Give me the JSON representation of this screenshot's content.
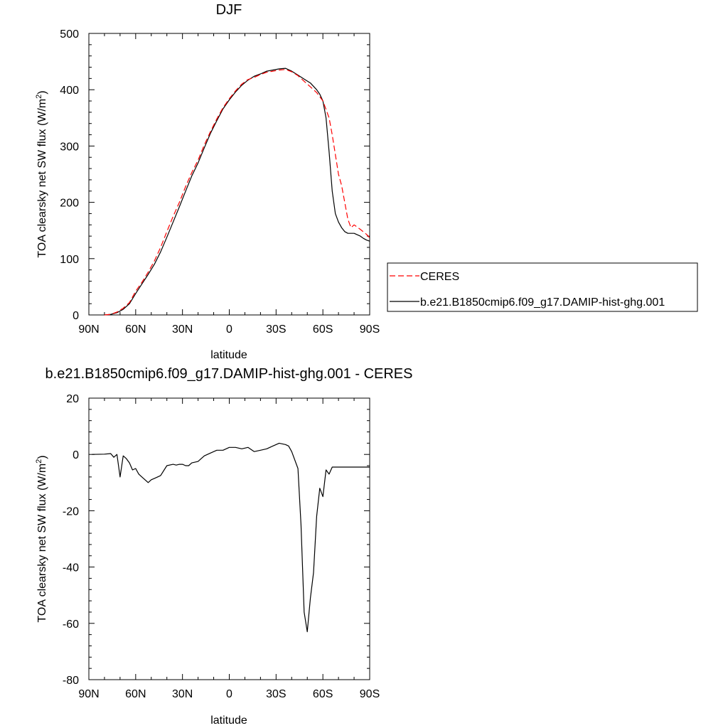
{
  "chart_data": [
    {
      "type": "line",
      "title": "DJF",
      "xlabel": "latitude",
      "ylabel": "TOA clearsky net SW flux (W/m",
      "ylabel_sup": "2",
      "ylabel_end": ")",
      "xlim": [
        90,
        -90
      ],
      "ylim": [
        0,
        500
      ],
      "x_tick_values": [
        90,
        60,
        30,
        0,
        -30,
        -60,
        -90
      ],
      "x_tick_labels": [
        "90N",
        "60N",
        "30N",
        "0",
        "30S",
        "60S",
        "90S"
      ],
      "y_tick_values": [
        0,
        100,
        200,
        300,
        400,
        500
      ],
      "y_tick_labels": [
        "0",
        "100",
        "200",
        "300",
        "400",
        "500"
      ],
      "grid": false,
      "legend_position": "right",
      "series": [
        {
          "name": "CERES",
          "color": "#ff0000",
          "dash": true,
          "x": [
            80,
            76,
            72,
            68,
            64,
            60,
            56,
            52,
            48,
            44,
            40,
            36,
            32,
            28,
            24,
            20,
            16,
            12,
            8,
            4,
            0,
            -4,
            -8,
            -12,
            -16,
            -20,
            -24,
            -28,
            -32,
            -36,
            -40,
            -44,
            -48,
            -52,
            -56,
            -60,
            -64,
            -66,
            -68,
            -70,
            -72,
            -74,
            -76,
            -78,
            -80,
            -84,
            -88,
            -90
          ],
          "y": [
            0,
            1,
            5,
            12,
            22,
            42,
            58,
            76,
            96,
            120,
            148,
            175,
            200,
            228,
            253,
            275,
            302,
            326,
            348,
            368,
            384,
            398,
            410,
            418,
            422,
            427,
            431,
            433,
            435,
            436,
            432,
            425,
            415,
            405,
            395,
            380,
            350,
            320,
            285,
            250,
            230,
            200,
            170,
            155,
            160,
            152,
            143,
            137
          ]
        },
        {
          "name": "b.e21.B1850cmip6.f09_g17.DAMIP-hist-ghg.001",
          "color": "#000000",
          "dash": false,
          "x": [
            80,
            76,
            72,
            68,
            64,
            60,
            56,
            52,
            48,
            44,
            40,
            36,
            32,
            28,
            24,
            20,
            16,
            12,
            8,
            4,
            0,
            -4,
            -8,
            -12,
            -16,
            -20,
            -24,
            -28,
            -32,
            -36,
            -40,
            -44,
            -48,
            -52,
            -56,
            -58,
            -60,
            -62,
            -64,
            -66,
            -68,
            -70,
            -72,
            -74,
            -76,
            -78,
            -80,
            -84,
            -86,
            -88,
            -90
          ],
          "y": [
            0,
            1,
            4,
            10,
            20,
            38,
            55,
            72,
            90,
            112,
            138,
            165,
            192,
            220,
            247,
            270,
            297,
            323,
            345,
            366,
            382,
            396,
            408,
            417,
            424,
            428,
            433,
            435,
            437,
            438,
            433,
            426,
            419,
            412,
            400,
            392,
            380,
            350,
            290,
            220,
            180,
            165,
            155,
            148,
            145,
            145,
            145,
            140,
            136,
            133,
            131
          ]
        }
      ]
    },
    {
      "type": "line",
      "title": "b.e21.B1850cmip6.f09_g17.DAMIP-hist-ghg.001 - CERES",
      "xlabel": "latitude",
      "ylabel": "TOA clearsky net SW flux (W/m",
      "ylabel_sup": "2",
      "ylabel_end": ")",
      "xlim": [
        90,
        -90
      ],
      "ylim": [
        -80,
        20
      ],
      "x_tick_values": [
        90,
        60,
        30,
        0,
        -30,
        -60,
        -90
      ],
      "x_tick_labels": [
        "90N",
        "60N",
        "30N",
        "0",
        "30S",
        "60S",
        "90S"
      ],
      "y_tick_values": [
        -80,
        -60,
        -40,
        -20,
        0,
        20
      ],
      "y_tick_labels": [
        "-80",
        "-60",
        "-40",
        "-20",
        "0",
        "20"
      ],
      "grid": false,
      "series": [
        {
          "color": "#000000",
          "dash": false,
          "x": [
            88,
            80,
            76,
            74,
            72,
            70,
            68,
            66,
            64,
            62,
            60,
            58,
            56,
            52,
            50,
            48,
            46,
            44,
            40,
            36,
            34,
            32,
            30,
            28,
            26,
            24,
            20,
            18,
            16,
            14,
            12,
            8,
            4,
            0,
            -4,
            -8,
            -12,
            -16,
            -20,
            -24,
            -28,
            -32,
            -36,
            -38,
            -40,
            -44,
            -46,
            -48,
            -50,
            -52,
            -54,
            -56,
            -58,
            -60,
            -62,
            -64,
            -66,
            -68,
            -70,
            -72,
            -74,
            -76,
            -78,
            -80,
            -82,
            -84,
            -86,
            -88,
            -90
          ],
          "y": [
            0,
            0.1,
            0.3,
            -1,
            0,
            -8,
            -0.5,
            -1.5,
            -3,
            -5.5,
            -5,
            -7,
            -8,
            -10,
            -9,
            -8.5,
            -8,
            -7.5,
            -4,
            -3.5,
            -3.8,
            -3.5,
            -3.5,
            -4,
            -4,
            -3,
            -2.5,
            -1.5,
            -0.5,
            0,
            0.5,
            1.5,
            1.5,
            2.5,
            2.5,
            2,
            2.5,
            1,
            1.5,
            2,
            3,
            4,
            3.5,
            3,
            1,
            -5,
            -25,
            -56,
            -63,
            -51,
            -42,
            -22,
            -12,
            -15,
            -5.5,
            -7,
            -4.5,
            -4.5,
            -4.5,
            -4.5,
            -4.5,
            -4.5,
            -4.5,
            -4.5,
            -4.5,
            -4.5,
            -4.5,
            -4.5,
            -4.5
          ]
        }
      ]
    }
  ]
}
